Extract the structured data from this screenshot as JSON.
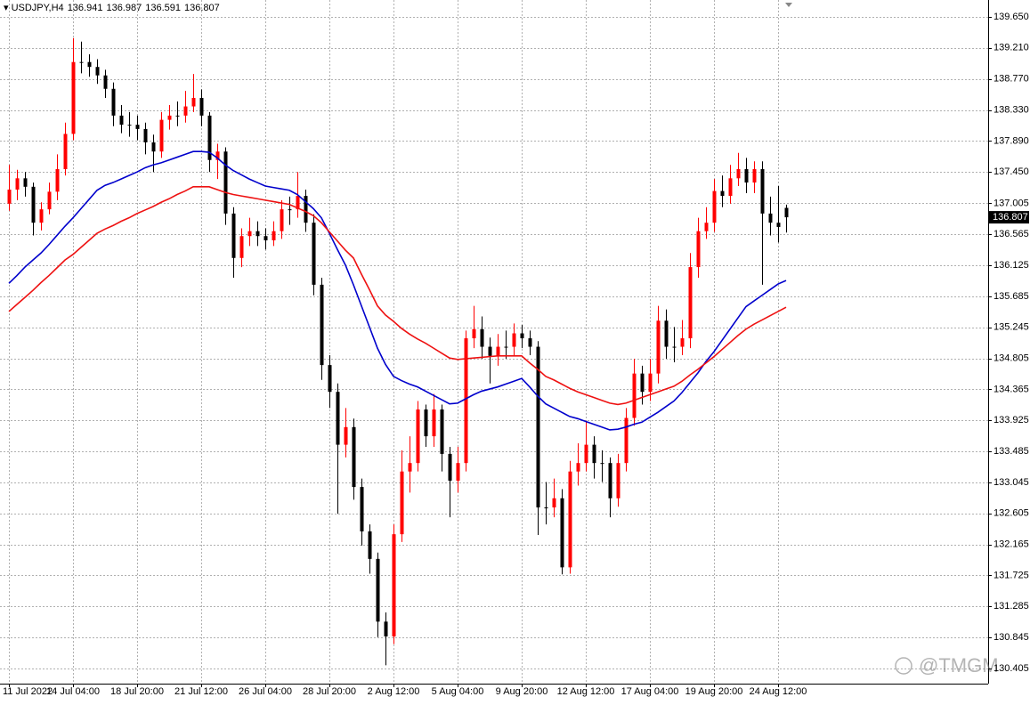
{
  "chart_data": {
    "type": "candlestick",
    "symbol": "USDJPY,H4",
    "up_color": "#ff0000",
    "down_color": "#000000",
    "grid": true,
    "watermark": "@TMGM",
    "ylim": [
      130.19,
      139.89
    ],
    "yticks": [
      {
        "value": 139.65,
        "label": "139.650"
      },
      {
        "value": 139.21,
        "label": "139.210"
      },
      {
        "value": 138.77,
        "label": "138.770"
      },
      {
        "value": 138.33,
        "label": "138.330"
      },
      {
        "value": 137.89,
        "label": "137.890"
      },
      {
        "value": 137.45,
        "label": "137.450"
      },
      137.005,
      136.565,
      136.125,
      135.685,
      135.245,
      134.805,
      134.365,
      133.925,
      133.485,
      133.045,
      132.605,
      132.165,
      131.725,
      131.285,
      130.845,
      130.405
    ],
    "categories": [
      "11 Jul 2022",
      null,
      null,
      null,
      null,
      null,
      null,
      null,
      "14 Jul 04:00",
      null,
      null,
      null,
      null,
      null,
      null,
      null,
      "18 Jul 20:00",
      null,
      null,
      null,
      null,
      null,
      null,
      null,
      "21 Jul 12:00",
      null,
      null,
      null,
      null,
      null,
      null,
      null,
      "26 Jul 04:00",
      null,
      null,
      null,
      null,
      null,
      null,
      null,
      "28 Jul 20:00",
      null,
      null,
      null,
      null,
      null,
      null,
      null,
      "2 Aug 12:00",
      null,
      null,
      null,
      null,
      null,
      null,
      null,
      "5 Aug 04:00",
      null,
      null,
      null,
      null,
      null,
      null,
      null,
      "9 Aug 20:00",
      null,
      null,
      null,
      null,
      null,
      null,
      null,
      "12 Aug 12:00",
      null,
      null,
      null,
      null,
      null,
      null,
      null,
      "17 Aug 04:00",
      null,
      null,
      null,
      null,
      null,
      null,
      null,
      "19 Aug 20:00",
      null,
      null,
      null,
      null,
      null,
      null,
      null,
      "24 Aug 12:00",
      null
    ],
    "open": [
      137.0,
      137.2,
      137.36,
      137.24,
      136.73,
      136.92,
      137.17,
      137.49,
      137.99,
      139.01,
      139.01,
      138.94,
      138.82,
      138.63,
      138.25,
      138.12,
      138.12,
      138.06,
      137.87,
      137.74,
      138.19,
      138.25,
      138.25,
      138.38,
      138.5,
      138.25,
      137.62,
      137.74,
      136.86,
      136.23,
      136.54,
      136.61,
      136.54,
      136.48,
      136.61,
      136.92,
      136.92,
      137.11,
      136.73,
      135.85,
      134.71,
      134.33,
      133.58,
      133.83,
      132.98,
      132.35,
      131.96,
      131.07,
      130.86,
      132.31,
      133.2,
      133.32,
      134.08,
      133.7,
      134.08,
      133.45,
      133.07,
      133.32,
      135.09,
      135.22,
      134.97,
      134.84,
      134.97,
      134.97,
      135.16,
      135.09,
      134.97,
      132.69,
      132.69,
      132.82,
      131.84,
      133.2,
      133.32,
      133.58,
      133.32,
      133.32,
      132.82,
      133.32,
      133.96,
      134.59,
      134.33,
      134.59,
      135.34,
      134.97,
      134.97,
      135.09,
      136.1,
      136.61,
      136.73,
      137.18,
      137.11,
      137.36,
      137.49,
      137.3,
      137.49,
      136.86,
      136.73,
      136.941
    ],
    "high": [
      137.55,
      137.48,
      137.45,
      137.3,
      137.02,
      137.3,
      137.7,
      138.15,
      139.35,
      139.3,
      139.12,
      139.05,
      138.9,
      138.72,
      138.4,
      138.3,
      138.25,
      138.15,
      137.98,
      138.3,
      138.4,
      138.45,
      138.6,
      138.84,
      138.62,
      138.3,
      137.85,
      137.8,
      136.95,
      136.65,
      136.8,
      136.75,
      136.65,
      136.75,
      137.05,
      137.1,
      137.45,
      137.2,
      136.85,
      135.95,
      134.85,
      134.45,
      134.1,
      133.95,
      133.1,
      132.45,
      132.05,
      131.2,
      132.45,
      133.5,
      133.7,
      134.2,
      134.15,
      134.3,
      134.15,
      133.55,
      133.55,
      135.2,
      135.55,
      135.4,
      135.1,
      135.15,
      135.2,
      135.3,
      135.28,
      135.2,
      135.05,
      133.05,
      133.1,
      132.95,
      133.35,
      133.6,
      133.92,
      133.7,
      133.5,
      133.4,
      133.45,
      134.1,
      134.8,
      134.7,
      134.8,
      135.55,
      135.5,
      135.25,
      135.35,
      136.3,
      136.8,
      136.95,
      137.35,
      137.4,
      137.55,
      137.72,
      137.65,
      137.6,
      137.6,
      137.1,
      137.25,
      136.987
    ],
    "low": [
      136.9,
      137.05,
      137.1,
      136.55,
      136.62,
      136.85,
      137.05,
      137.4,
      137.9,
      138.85,
      138.8,
      138.7,
      138.5,
      138.1,
      138.0,
      137.95,
      137.9,
      137.7,
      137.45,
      137.65,
      138.05,
      138.1,
      138.15,
      138.3,
      138.1,
      137.45,
      137.35,
      136.7,
      135.95,
      136.1,
      136.4,
      136.4,
      136.35,
      136.4,
      136.5,
      136.7,
      136.8,
      136.6,
      135.7,
      134.5,
      134.1,
      132.6,
      133.4,
      132.8,
      132.15,
      131.75,
      130.85,
      130.45,
      130.75,
      132.2,
      132.9,
      133.2,
      133.55,
      133.55,
      133.2,
      132.55,
      132.9,
      133.2,
      134.95,
      134.8,
      134.45,
      134.7,
      134.8,
      134.85,
      134.95,
      134.85,
      132.3,
      132.45,
      132.55,
      131.74,
      131.75,
      133.0,
      133.2,
      133.1,
      133.05,
      132.55,
      132.7,
      133.2,
      133.85,
      134.15,
      134.2,
      134.45,
      134.8,
      134.75,
      134.85,
      134.95,
      135.95,
      136.5,
      136.6,
      136.95,
      137.0,
      137.25,
      137.15,
      137.15,
      135.85,
      136.55,
      136.45,
      136.591
    ],
    "close": [
      137.2,
      137.36,
      137.24,
      136.73,
      136.92,
      137.17,
      137.49,
      137.99,
      139.01,
      139.01,
      138.94,
      138.82,
      138.63,
      138.25,
      138.12,
      138.12,
      138.06,
      137.87,
      137.74,
      138.19,
      138.25,
      138.25,
      138.38,
      138.5,
      138.25,
      137.62,
      137.74,
      136.86,
      136.23,
      136.54,
      136.61,
      136.54,
      136.48,
      136.61,
      136.92,
      136.92,
      137.11,
      136.73,
      135.85,
      134.71,
      134.33,
      133.58,
      133.83,
      132.98,
      132.35,
      131.96,
      131.07,
      130.86,
      132.31,
      133.2,
      133.32,
      134.08,
      133.7,
      134.08,
      133.45,
      133.07,
      133.32,
      135.09,
      135.22,
      134.97,
      134.84,
      134.97,
      134.97,
      135.16,
      135.09,
      134.97,
      132.69,
      132.69,
      132.82,
      131.84,
      133.2,
      133.32,
      133.58,
      133.32,
      133.32,
      132.82,
      133.32,
      133.96,
      134.59,
      134.33,
      134.59,
      135.34,
      134.97,
      134.97,
      135.09,
      136.1,
      136.61,
      136.73,
      137.18,
      137.11,
      137.36,
      137.49,
      137.3,
      137.49,
      136.86,
      136.73,
      136.67,
      136.807
    ],
    "lines": [
      {
        "color": "#0000cc",
        "values": [
          135.87,
          135.98,
          136.1,
          136.2,
          136.3,
          136.42,
          136.55,
          136.68,
          136.8,
          136.93,
          137.06,
          137.19,
          137.26,
          137.3,
          137.35,
          137.4,
          137.45,
          137.51,
          137.55,
          137.58,
          137.62,
          137.66,
          137.7,
          137.74,
          137.74,
          137.73,
          137.65,
          137.55,
          137.47,
          137.41,
          137.35,
          137.3,
          137.25,
          137.23,
          137.21,
          137.19,
          137.13,
          137.03,
          136.93,
          136.8,
          136.58,
          136.35,
          136.13,
          135.85,
          135.55,
          135.25,
          134.95,
          134.72,
          134.55,
          134.49,
          134.44,
          134.4,
          134.34,
          134.28,
          134.22,
          134.16,
          134.17,
          134.23,
          134.29,
          134.34,
          134.37,
          134.4,
          134.44,
          134.48,
          134.52,
          134.4,
          134.27,
          134.16,
          134.1,
          134.04,
          133.98,
          133.95,
          133.91,
          133.87,
          133.83,
          133.79,
          133.8,
          133.83,
          133.87,
          133.9,
          133.97,
          134.04,
          134.12,
          134.2,
          134.32,
          134.46,
          134.6,
          134.76,
          134.9,
          135.06,
          135.22,
          135.38,
          135.54,
          135.62,
          135.7,
          135.78,
          135.86,
          135.91
        ]
      },
      {
        "color": "#ee1111",
        "values": [
          135.47,
          135.57,
          135.67,
          135.77,
          135.88,
          135.98,
          136.09,
          136.2,
          136.28,
          136.38,
          136.48,
          136.58,
          136.64,
          136.69,
          136.75,
          136.8,
          136.86,
          136.91,
          136.96,
          137.02,
          137.07,
          137.13,
          137.18,
          137.24,
          137.24,
          137.24,
          137.2,
          137.16,
          137.13,
          137.11,
          137.09,
          137.07,
          137.05,
          137.03,
          137.01,
          136.99,
          136.94,
          136.89,
          136.83,
          136.73,
          136.6,
          136.47,
          136.34,
          136.23,
          136.0,
          135.78,
          135.55,
          135.42,
          135.33,
          135.23,
          135.15,
          135.08,
          135.02,
          134.95,
          134.88,
          134.81,
          134.79,
          134.8,
          134.81,
          134.82,
          134.83,
          134.84,
          134.84,
          134.84,
          134.84,
          134.74,
          134.65,
          134.55,
          134.5,
          134.44,
          134.38,
          134.33,
          134.29,
          134.25,
          134.21,
          134.17,
          134.15,
          134.17,
          134.21,
          134.25,
          134.29,
          134.33,
          134.37,
          134.41,
          134.48,
          134.57,
          134.65,
          134.74,
          134.83,
          134.93,
          135.03,
          135.13,
          135.22,
          135.29,
          135.35,
          135.41,
          135.47,
          135.53
        ]
      }
    ]
  }
}
